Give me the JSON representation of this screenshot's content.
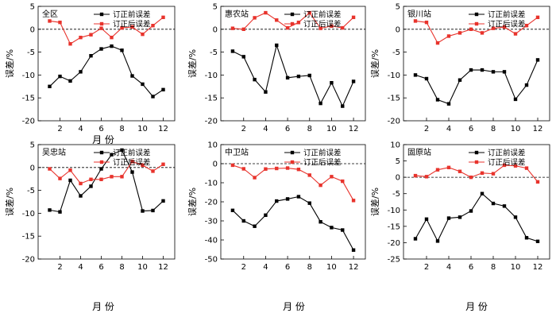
{
  "chart_data": [
    {
      "type": "line",
      "title": "全区",
      "xlabel": "月 份",
      "ylabel": "误差/%",
      "categories": [
        1,
        2,
        3,
        4,
        5,
        6,
        7,
        8,
        9,
        10,
        11,
        12
      ],
      "xticks": [
        2,
        4,
        6,
        8,
        10,
        12
      ],
      "ylim": [
        -20,
        5
      ],
      "yticks": [
        5,
        0,
        -5,
        -10,
        -15,
        -20
      ],
      "series": [
        {
          "name": "订正前误差",
          "color": "#000000",
          "values": [
            -12.5,
            -10.3,
            -11.3,
            -9.3,
            -5.8,
            -4.3,
            -3.7,
            -4.6,
            -10.2,
            -12,
            -14.7,
            -13.2
          ]
        },
        {
          "name": "订正后误差",
          "color": "#e8332c",
          "values": [
            1.8,
            1.5,
            -3.2,
            -1.8,
            -1.2,
            0.2,
            -1.8,
            0.3,
            0.5,
            -1.1,
            0.8,
            2.6
          ]
        }
      ]
    },
    {
      "type": "line",
      "title": "惠农站",
      "xlabel": "",
      "ylabel": "误差/%",
      "categories": [
        1,
        2,
        3,
        4,
        5,
        6,
        7,
        8,
        9,
        10,
        11,
        12
      ],
      "xticks": [
        2,
        4,
        6,
        8,
        10,
        12
      ],
      "ylim": [
        -20,
        5
      ],
      "yticks": [
        5,
        0,
        -5,
        -10,
        -15,
        -20
      ],
      "series": [
        {
          "name": "订正前误差",
          "color": "#000000",
          "values": [
            -4.8,
            -6,
            -11,
            -13.7,
            -3.5,
            -10.6,
            -10.3,
            -10.1,
            -16.2,
            -11.7,
            -16.8,
            -11.4
          ]
        },
        {
          "name": "订正后误差",
          "color": "#e8332c",
          "values": [
            0.2,
            0,
            2.5,
            3.6,
            2,
            0.3,
            1.5,
            3.6,
            0.2,
            0.7,
            0.3,
            2.6
          ]
        }
      ]
    },
    {
      "type": "line",
      "title": "银川站",
      "xlabel": "",
      "ylabel": "误差/%",
      "categories": [
        1,
        2,
        3,
        4,
        5,
        6,
        7,
        8,
        9,
        10,
        11,
        12
      ],
      "xticks": [
        2,
        4,
        6,
        8,
        10,
        12
      ],
      "ylim": [
        -20,
        5
      ],
      "yticks": [
        5,
        0,
        -5,
        -10,
        -15,
        -20
      ],
      "series": [
        {
          "name": "订正前误差",
          "color": "#000000",
          "values": [
            -10,
            -10.8,
            -15.4,
            -16.3,
            -11.1,
            -8.9,
            -8.9,
            -9.3,
            -9.3,
            -15.3,
            -12.2,
            -6.7
          ]
        },
        {
          "name": "订正后误差",
          "color": "#e8332c",
          "values": [
            1.8,
            1.5,
            -3,
            -1.5,
            -0.8,
            0,
            -0.8,
            0.2,
            0.5,
            -1,
            0.8,
            2.6
          ]
        }
      ]
    },
    {
      "type": "line",
      "title": "吴忠站",
      "xlabel": "月 份",
      "ylabel": "误差/%",
      "categories": [
        1,
        2,
        3,
        4,
        5,
        6,
        7,
        8,
        9,
        10,
        11,
        12
      ],
      "xticks": [
        2,
        4,
        6,
        8,
        10,
        12
      ],
      "ylim": [
        -20,
        5
      ],
      "yticks": [
        5,
        0,
        -5,
        -10,
        -15,
        -20
      ],
      "series": [
        {
          "name": "订正前误差",
          "color": "#000000",
          "values": [
            -9.3,
            -9.7,
            -2.8,
            -6.2,
            -4.1,
            -0.3,
            2.8,
            3.8,
            -1,
            -9.5,
            -9.4,
            -7.3
          ]
        },
        {
          "name": "订正后误差",
          "color": "#e8332c",
          "values": [
            -0.3,
            -2.4,
            -0.6,
            -3.5,
            -2.6,
            -2.6,
            -2,
            -2,
            1.3,
            0.5,
            -0.8,
            0.7
          ]
        }
      ]
    },
    {
      "type": "line",
      "title": "中卫站",
      "xlabel": "月 份",
      "ylabel": "误差/%",
      "categories": [
        1,
        2,
        3,
        4,
        5,
        6,
        7,
        8,
        9,
        10,
        11,
        12
      ],
      "xticks": [
        2,
        4,
        6,
        8,
        10,
        12
      ],
      "ylim": [
        -50,
        10
      ],
      "yticks": [
        10,
        0,
        -10,
        -20,
        -30,
        -40,
        -50
      ],
      "series": [
        {
          "name": "订正前误差",
          "color": "#000000",
          "values": [
            -24.5,
            -30,
            -32.8,
            -27,
            -19.6,
            -18.5,
            -17.3,
            -20.7,
            -30.5,
            -33.5,
            -34.8,
            -45.3
          ]
        },
        {
          "name": "订正后误差",
          "color": "#e8332c",
          "values": [
            -0.8,
            -2.7,
            -7.3,
            -2.8,
            -2.5,
            -2.3,
            -3,
            -6,
            -11.3,
            -6.8,
            -9.2,
            -19.3
          ]
        }
      ]
    },
    {
      "type": "line",
      "title": "固原站",
      "xlabel": "月 份",
      "ylabel": "误差/%",
      "categories": [
        1,
        2,
        3,
        4,
        5,
        6,
        7,
        8,
        9,
        10,
        11,
        12
      ],
      "xticks": [
        2,
        4,
        6,
        8,
        10,
        12
      ],
      "ylim": [
        -25,
        10
      ],
      "yticks": [
        10,
        5,
        0,
        -5,
        -10,
        -15,
        -20,
        -25
      ],
      "series": [
        {
          "name": "订正前误差",
          "color": "#000000",
          "values": [
            -18.8,
            -12.8,
            -19.5,
            -12.5,
            -12.2,
            -10.3,
            -5,
            -8,
            -8.8,
            -12.2,
            -18.5,
            -19.6
          ]
        },
        {
          "name": "订正后误差",
          "color": "#e8332c",
          "values": [
            0.5,
            0.2,
            2.3,
            3,
            1.8,
            0,
            1.3,
            1.1,
            3.7,
            3.5,
            2.8,
            -1.4
          ]
        }
      ]
    }
  ]
}
